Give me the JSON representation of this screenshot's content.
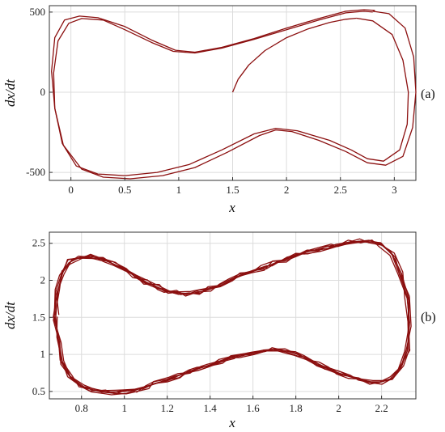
{
  "colors": {
    "curve": "#8b0f0f"
  },
  "chart_data": [
    {
      "type": "line",
      "panel_label": "(a)",
      "xlabel": "x",
      "ylabel": "dx/dt",
      "xlim": [
        -0.2,
        3.2
      ],
      "ylim": [
        -550,
        540
      ],
      "xticks": [
        0,
        0.5,
        1,
        1.5,
        2,
        2.5,
        3
      ],
      "xtick_labels": [
        "0",
        "0.5",
        "1",
        "1.5",
        "2",
        "2.5",
        "3"
      ],
      "yticks": [
        -500,
        0,
        500
      ],
      "ytick_labels": [
        "-500",
        "0",
        "500"
      ],
      "grid": true,
      "series": [
        {
          "kind": "transient",
          "x": [
            1.5,
            1.55,
            1.65,
            1.8,
            2.0,
            2.2,
            2.4,
            2.55,
            2.65
          ],
          "y": [
            0,
            80,
            170,
            260,
            340,
            395,
            435,
            455,
            462
          ]
        },
        {
          "kind": "loop",
          "x": [
            2.65,
            2.8,
            2.98,
            3.08,
            3.13,
            3.12,
            3.05,
            2.9,
            2.75,
            2.6,
            2.4,
            2.1,
            1.9,
            1.7,
            1.4,
            1.1,
            0.8,
            0.5,
            0.25,
            0.05,
            -0.08,
            -0.15,
            -0.16,
            -0.12,
            -0.02,
            0.1,
            0.3,
            0.5,
            0.75,
            0.95,
            1.15,
            1.4,
            1.7,
            2.0,
            2.3,
            2.55,
            2.72,
            2.8
          ],
          "y": [
            462,
            445,
            360,
            200,
            0,
            -200,
            -360,
            -430,
            -415,
            -360,
            -300,
            -240,
            -225,
            -260,
            -360,
            -450,
            -500,
            -520,
            -510,
            -460,
            -320,
            -100,
            120,
            320,
            430,
            460,
            450,
            390,
            310,
            255,
            245,
            275,
            330,
            390,
            450,
            495,
            505,
            500
          ]
        },
        {
          "kind": "loop",
          "x": [
            2.8,
            2.95,
            3.1,
            3.18,
            3.2,
            3.17,
            3.08,
            2.92,
            2.75,
            2.55,
            2.3,
            2.05,
            1.9,
            1.75,
            1.45,
            1.15,
            0.85,
            0.55,
            0.3,
            0.1,
            -0.07,
            -0.15,
            -0.18,
            -0.15,
            -0.06,
            0.08,
            0.25,
            0.5,
            0.75,
            0.97,
            1.15,
            1.4,
            1.7,
            2.0,
            2.3,
            2.55,
            2.72,
            2.82
          ],
          "y": [
            505,
            490,
            400,
            220,
            0,
            -220,
            -400,
            -455,
            -440,
            -370,
            -300,
            -245,
            -235,
            -270,
            -375,
            -470,
            -520,
            -540,
            -530,
            -480,
            -330,
            -100,
            130,
            340,
            450,
            475,
            465,
            410,
            325,
            262,
            250,
            280,
            335,
            400,
            460,
            505,
            515,
            510
          ]
        }
      ]
    },
    {
      "type": "line",
      "panel_label": "(b)",
      "xlabel": "x",
      "ylabel": "dx/dt",
      "xlim": [
        0.65,
        2.36
      ],
      "ylim": [
        0.4,
        2.65
      ],
      "xticks": [
        0.8,
        1,
        1.2,
        1.4,
        1.6,
        1.8,
        2,
        2.2
      ],
      "xtick_labels": [
        "0.8",
        "1",
        "1.2",
        "1.4",
        "1.6",
        "1.8",
        "2",
        "2.2"
      ],
      "yticks": [
        0.5,
        1,
        1.5,
        2,
        2.5
      ],
      "ytick_labels": [
        "0.5",
        "1",
        "1.5",
        "2",
        "2.5"
      ],
      "grid": true,
      "series": [
        {
          "kind": "loop",
          "x": [
            0.68,
            0.69,
            0.71,
            0.75,
            0.8,
            0.85,
            0.9,
            0.95,
            1.0,
            1.05,
            1.1,
            1.15,
            1.2,
            1.25,
            1.3,
            1.35,
            1.4,
            1.45,
            1.5,
            1.55,
            1.6,
            1.65,
            1.7,
            1.75,
            1.8,
            1.85,
            1.9,
            1.95,
            2.0,
            2.05,
            2.1,
            2.15,
            2.2,
            2.25,
            2.29,
            2.32,
            2.33,
            2.32,
            2.29,
            2.25,
            2.2,
            2.15,
            2.1,
            2.05,
            2.0,
            1.95,
            1.9,
            1.85,
            1.8,
            1.75,
            1.7,
            1.65,
            1.6,
            1.55,
            1.5,
            1.45,
            1.4,
            1.35,
            1.3,
            1.25,
            1.2,
            1.15,
            1.1,
            1.05,
            1.0,
            0.95,
            0.9,
            0.85,
            0.8,
            0.75,
            0.71,
            0.69,
            0.68
          ],
          "y": [
            1.5,
            1.85,
            2.1,
            2.25,
            2.32,
            2.32,
            2.28,
            2.22,
            2.15,
            2.07,
            1.98,
            1.91,
            1.86,
            1.83,
            1.82,
            1.84,
            1.88,
            1.95,
            2.02,
            2.08,
            2.12,
            2.17,
            2.23,
            2.28,
            2.33,
            2.38,
            2.42,
            2.46,
            2.49,
            2.51,
            2.53,
            2.53,
            2.48,
            2.35,
            2.1,
            1.75,
            1.4,
            1.05,
            0.82,
            0.68,
            0.63,
            0.63,
            0.66,
            0.7,
            0.75,
            0.81,
            0.88,
            0.95,
            1.01,
            1.05,
            1.07,
            1.06,
            1.02,
            0.98,
            0.95,
            0.91,
            0.86,
            0.81,
            0.76,
            0.71,
            0.66,
            0.61,
            0.56,
            0.52,
            0.5,
            0.49,
            0.5,
            0.52,
            0.57,
            0.68,
            0.9,
            1.2,
            1.5
          ]
        }
      ]
    }
  ]
}
